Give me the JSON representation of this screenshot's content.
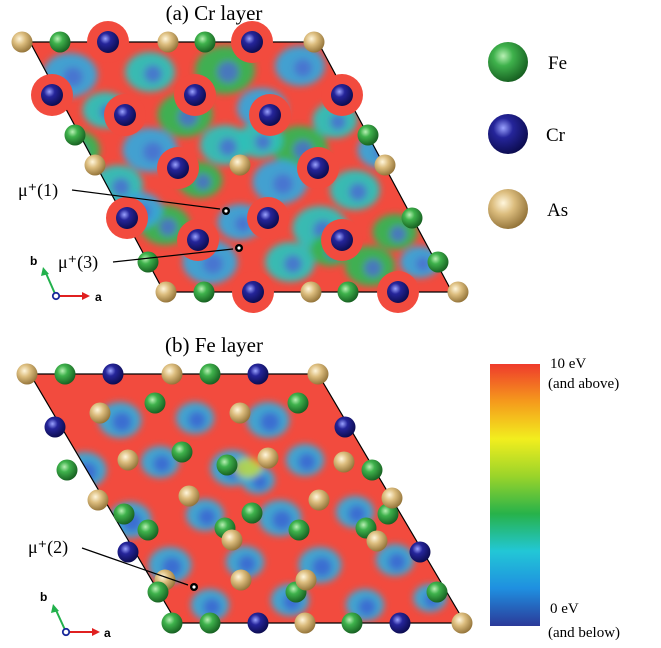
{
  "panels": [
    {
      "title": "(a) Cr layer",
      "muon_labels": [
        "μ⁺(1)",
        "μ⁺(3)"
      ]
    },
    {
      "title": "(b) Fe layer",
      "muon_labels": [
        "μ⁺(2)"
      ]
    }
  ],
  "axes": {
    "a": "a",
    "b": "b"
  },
  "legend": [
    {
      "label": "Fe",
      "color": "#2e9a3a"
    },
    {
      "label": "Cr",
      "color": "#1c1c84"
    },
    {
      "label": "As",
      "color": "#d9b87a"
    }
  ],
  "colorbar": {
    "max_label": "10 eV",
    "max_note": "(and above)",
    "min_label": "0 eV",
    "min_note": "(and below)",
    "colors": [
      "#2b3a99",
      "#1f8fe0",
      "#22c7d6",
      "#27b24a",
      "#9ad42a",
      "#f2ee1e",
      "#f59a1c",
      "#ef3b2c"
    ]
  },
  "colors": {
    "field": "#f24b3e",
    "low": "#3f6fd4",
    "mid": "#2fc0c0",
    "green": "#3db84a"
  }
}
